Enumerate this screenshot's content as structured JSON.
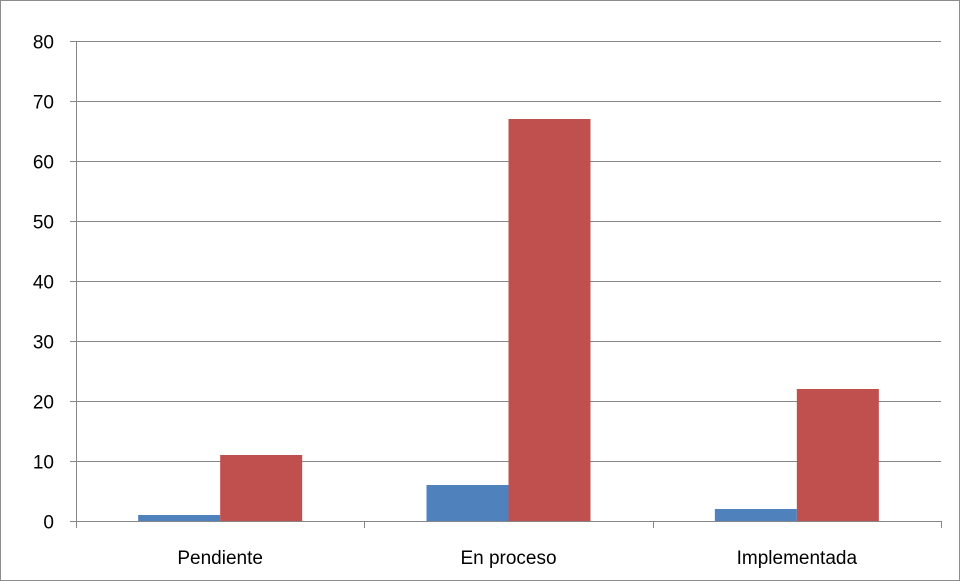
{
  "chart_data": {
    "type": "bar",
    "title": "",
    "xlabel": "",
    "ylabel": "",
    "categories": [
      "Pendiente",
      "En proceso",
      "Implementada"
    ],
    "series": [
      {
        "values": [
          1,
          6,
          2
        ],
        "color": "#4f81bd"
      },
      {
        "values": [
          11,
          67,
          22
        ],
        "color": "#c0504d"
      }
    ],
    "ylim": [
      0,
      80
    ],
    "yticks": [
      0,
      10,
      20,
      30,
      40,
      50,
      60,
      70,
      80
    ],
    "grid": true,
    "legend": "none"
  }
}
